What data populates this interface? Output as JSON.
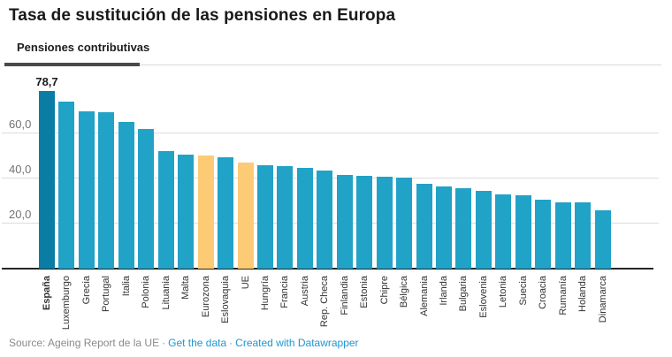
{
  "header": {
    "title": "Tasa de sustitución de las pensiones en Europa",
    "tab": "Pensiones contributivas"
  },
  "footer": {
    "source_text": "Source: Ageing Report de la UE",
    "separator": "·",
    "link1": "Get the data",
    "link2": "Created with Datawrapper"
  },
  "colors": {
    "bar_default": "#21a2c7",
    "bar_highlight_dark": "#0b7ca3",
    "bar_highlight_orange": "#fdca76",
    "gridline": "#dcdcdc",
    "baseline": "#262626",
    "link_blue": "#1d96d2"
  },
  "chart_data": {
    "type": "bar",
    "title": "Tasa de sustitución de las pensiones en Europa",
    "tab_label": "Pensiones contributivas",
    "categories": [
      "España",
      "Luxemburgo",
      "Grecia",
      "Portugal",
      "Italia",
      "Polonia",
      "Lituania",
      "Malta",
      "Eurozona",
      "Eslovaquia",
      "UE",
      "Hungría",
      "Francia",
      "Austria",
      "Rep. Checa",
      "Finlandia",
      "Estonia",
      "Chipre",
      "Bélgica",
      "Alemania",
      "Irlanda",
      "Bulgaria",
      "Eslovenia",
      "Letonia",
      "Suecia",
      "Croacia",
      "Rumanía",
      "Holanda",
      "Dinamarca"
    ],
    "values": [
      78.7,
      74.0,
      69.5,
      69.2,
      65.0,
      62.0,
      52.0,
      50.5,
      50.0,
      49.5,
      47.0,
      46.0,
      45.5,
      44.5,
      43.5,
      41.5,
      41.2,
      40.7,
      40.2,
      37.5,
      36.5,
      35.5,
      34.5,
      33.0,
      32.5,
      30.5,
      29.5,
      29.2,
      26.0
    ],
    "highlight_dark": [
      "España"
    ],
    "highlight_orange": [
      "Eurozona",
      "UE"
    ],
    "data_label": {
      "category": "España",
      "text": "78,7"
    },
    "y_ticks": [
      {
        "value": 20,
        "label": "20,0"
      },
      {
        "value": 40,
        "label": "40,0"
      },
      {
        "value": 60,
        "label": "60,0"
      }
    ],
    "ylim": [
      0,
      85
    ],
    "grid": true,
    "legend": false,
    "bar_label_rotation": "vertical-bottom-to-top"
  }
}
